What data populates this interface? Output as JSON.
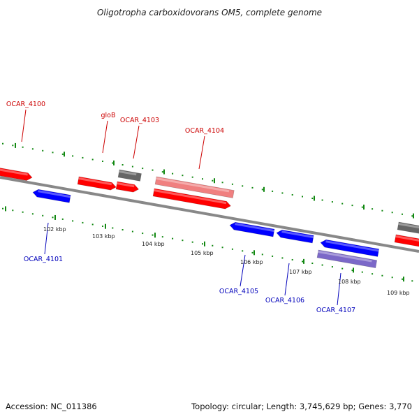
{
  "title": "Oligotropha carboxidovorans OM5, complete genome",
  "footer": {
    "accession": "Accession: NC_011386",
    "topology": "Topology: circular; Length: 3,745,629 bp; Genes: 3,770"
  },
  "colors": {
    "forward": "#ff0000",
    "forward_light": "#f08080",
    "reverse": "#0000ff",
    "reverse_light": "#7b68c8",
    "other": "#666666",
    "backbone": "#888888",
    "ticks": "#118811",
    "label_forward": "#cc0000",
    "label_reverse": "#0000bb"
  },
  "ticks": [
    {
      "label": "102 kbp"
    },
    {
      "label": "103 kbp"
    },
    {
      "label": "104 kbp"
    },
    {
      "label": "105 kbp"
    },
    {
      "label": "106 kbp"
    },
    {
      "label": "107 kbp"
    },
    {
      "label": "108 kbp"
    },
    {
      "label": "109 kbp"
    }
  ],
  "gene_labels": [
    {
      "text": "OCAR_4100",
      "strand": "forward"
    },
    {
      "text": "gloB",
      "strand": "forward"
    },
    {
      "text": "OCAR_4103",
      "strand": "forward"
    },
    {
      "text": "OCAR_4104",
      "strand": "forward"
    },
    {
      "text": "OCAR_4101",
      "strand": "reverse"
    },
    {
      "text": "OCAR_4105",
      "strand": "reverse"
    },
    {
      "text": "OCAR_4106",
      "strand": "reverse"
    },
    {
      "text": "OCAR_4107",
      "strand": "reverse"
    }
  ]
}
